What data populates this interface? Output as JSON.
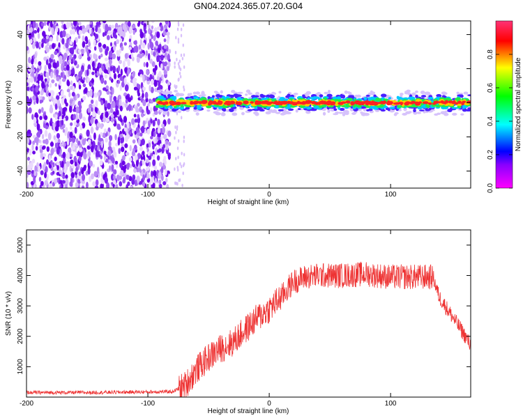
{
  "title": "GN04.2024.365.07.20.G04",
  "colors": {
    "snr_line": "#ee3333",
    "noise_purple": "#7a1fe0",
    "frame": "#000000"
  },
  "chart_data": [
    {
      "type": "heatmap",
      "xlabel": "Height of straight line (km)",
      "ylabel": "Frequency (Hz)",
      "xlim": [
        -200,
        166
      ],
      "ylim": [
        -50,
        48
      ],
      "xticks": [
        -200,
        -100,
        0,
        100
      ],
      "yticks": [
        -40,
        -20,
        0,
        20,
        40
      ],
      "noise_region_x": [
        -200,
        -82
      ],
      "signal_region_x": [
        -92,
        166
      ],
      "signal_frequency_hz": 0,
      "grid": false
    },
    {
      "type": "colorbar",
      "label": "Normalized spectral amplitude",
      "range": [
        0.0,
        1.0
      ],
      "ticks": [
        0.0,
        0.2,
        0.4,
        0.6,
        0.8
      ],
      "colormap": [
        "#ff00ff",
        "#0000ff",
        "#00ffff",
        "#00ff00",
        "#ffff00",
        "#ff0000",
        "#ff4477"
      ]
    },
    {
      "type": "line",
      "xlabel": "Height of straight line (km)",
      "ylabel": "SNR (10 * v/v)",
      "xlim": [
        -200,
        166
      ],
      "ylim": [
        0,
        5500
      ],
      "xticks": [
        -200,
        -100,
        0,
        100
      ],
      "yticks": [
        1000,
        2000,
        3000,
        4000,
        5000
      ],
      "grid": false,
      "series": [
        {
          "x": [
            -200,
            -150,
            -100,
            -80,
            -70,
            -60,
            -50,
            -40,
            -30,
            -20,
            -10,
            0,
            10,
            20,
            30,
            40,
            50,
            60,
            80,
            100,
            120,
            135,
            140,
            150,
            160,
            166
          ],
          "y": [
            150,
            150,
            170,
            180,
            350,
            900,
            1300,
            1600,
            1800,
            2200,
            2600,
            2900,
            3300,
            3800,
            3950,
            4000,
            4000,
            4000,
            4050,
            3950,
            3950,
            3950,
            3300,
            2700,
            2100,
            1700
          ]
        }
      ]
    }
  ]
}
